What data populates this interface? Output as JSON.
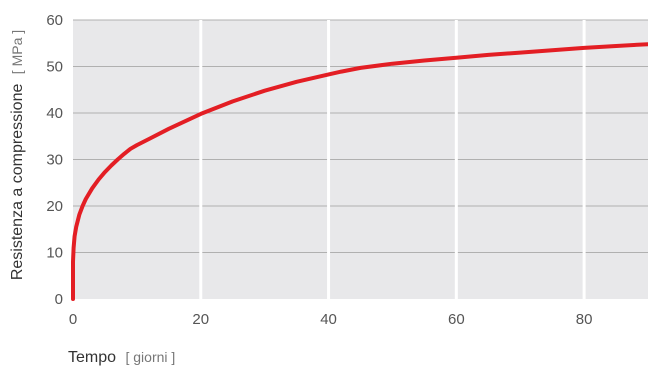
{
  "chart_data": {
    "type": "line",
    "title": "",
    "xlabel": "Tempo",
    "xlabel_unit": "[ giorni ]",
    "ylabel": "Resistenza a compressione",
    "ylabel_unit": "[ MPa ]",
    "xlim": [
      0,
      90
    ],
    "ylim": [
      0,
      60
    ],
    "x_ticks": [
      0,
      20,
      40,
      60,
      80
    ],
    "y_ticks": [
      0,
      10,
      20,
      30,
      40,
      50,
      60
    ],
    "x_tick_labels": [
      "0",
      "20",
      "40",
      "60",
      "80"
    ],
    "y_tick_labels": [
      "0",
      "10",
      "20",
      "30",
      "40",
      "50",
      "60"
    ],
    "grid": true,
    "legend": "none",
    "colors": {
      "plot_background": "#e8e8ea",
      "grid_vertical": "#ffffff",
      "grid_horizontal": "#b0b0b0",
      "series": "#e31e24"
    },
    "series": [
      {
        "x": [
          0,
          0,
          0.1,
          0.25,
          0.5,
          1,
          1.5,
          2,
          3,
          4,
          5,
          6,
          7,
          8,
          9,
          10,
          12,
          15,
          20,
          25,
          30,
          35,
          40,
          42,
          45,
          50,
          55,
          60,
          65,
          70,
          75,
          80,
          85,
          90
        ],
        "values": [
          0,
          8,
          11,
          13.5,
          15.5,
          18.2,
          20,
          21.5,
          23.8,
          25.7,
          27.3,
          28.7,
          30,
          31.2,
          32.3,
          33.1,
          34.5,
          36.6,
          39.8,
          42.5,
          44.8,
          46.7,
          48.3,
          48.9,
          49.7,
          50.6,
          51.3,
          51.9,
          52.5,
          53,
          53.5,
          54,
          54.4,
          54.8
        ]
      }
    ]
  }
}
